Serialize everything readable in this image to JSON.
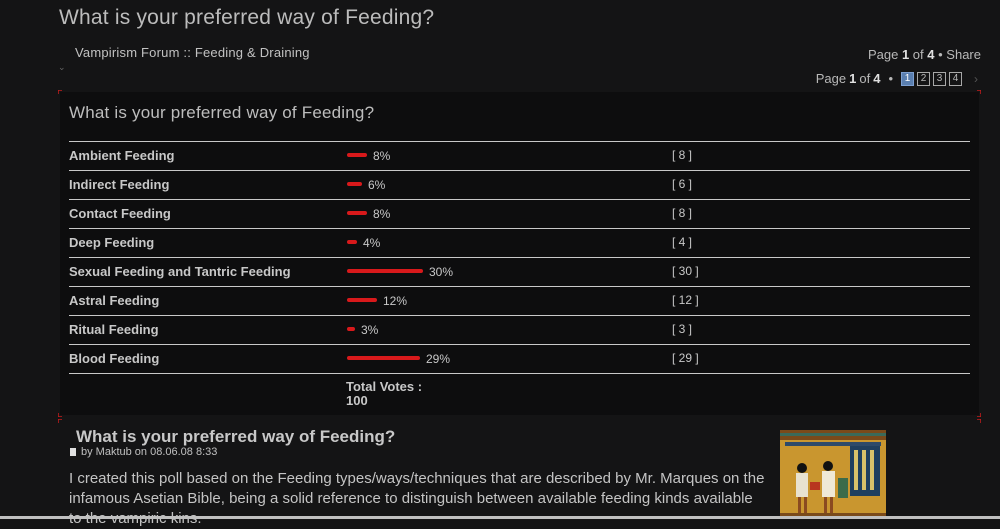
{
  "header": {
    "page_title": "What is your preferred way of Feeding?",
    "breadcrumb": "Vampirism Forum :: Feeding & Draining",
    "page_label": "Page",
    "current_page": "1",
    "of_label": "of",
    "total_pages": "4",
    "share_label": "Share",
    "pages": [
      "1",
      "2",
      "3",
      "4"
    ]
  },
  "poll": {
    "title": "What is your preferred way of Feeding?",
    "total_label": "Total Votes :",
    "total_votes": "100",
    "bar_color": "#d8191b",
    "options": [
      {
        "label": "Ambient Feeding",
        "percent": 8,
        "percent_text": "8%",
        "count_text": "[ 8 ]"
      },
      {
        "label": "Indirect Feeding",
        "percent": 6,
        "percent_text": "6%",
        "count_text": "[ 6 ]"
      },
      {
        "label": "Contact Feeding",
        "percent": 8,
        "percent_text": "8%",
        "count_text": "[ 8 ]"
      },
      {
        "label": "Deep Feeding",
        "percent": 4,
        "percent_text": "4%",
        "count_text": "[ 4 ]"
      },
      {
        "label": "Sexual Feeding and Tantric Feeding",
        "percent": 30,
        "percent_text": "30%",
        "count_text": "[ 30 ]"
      },
      {
        "label": "Astral Feeding",
        "percent": 12,
        "percent_text": "12%",
        "count_text": "[ 12 ]"
      },
      {
        "label": "Ritual Feeding",
        "percent": 3,
        "percent_text": "3%",
        "count_text": "[ 3 ]"
      },
      {
        "label": "Blood Feeding",
        "percent": 29,
        "percent_text": "29%",
        "count_text": "[ 29 ]"
      }
    ]
  },
  "post": {
    "title": "What is your preferred way of Feeding?",
    "meta": "by Maktub on 08.06.08 8:33",
    "body": "I created this poll based on the Feeding types/ways/techniques that are described by Mr. Marques on the infamous Asetian Bible, being a solid reference to distinguish between available feeding kinds available to the vampiric kins.",
    "image_icon": "egyptian-art-image"
  }
}
